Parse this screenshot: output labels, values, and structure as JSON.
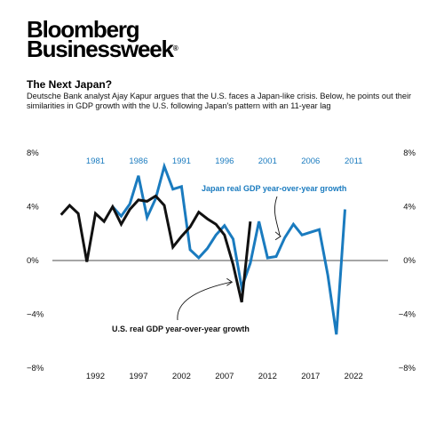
{
  "brand": {
    "line1": "Bloomberg",
    "line2": "Businessweek",
    "reg": "®"
  },
  "chart_data": {
    "type": "line",
    "title": "The Next Japan?",
    "subtitle": "Deutsche Bank analyst Ajay Kapur argues that the U.S. faces a Japan-like crisis. Below, he points out their similarities in GDP growth with the U.S. following Japan's pattern with an 11-year lag",
    "ylim": [
      -8,
      8
    ],
    "y_ticks": [
      8,
      4,
      0,
      -4,
      -8
    ],
    "y_tick_labels": [
      "8%",
      "4%",
      "0%",
      "−4%",
      "−8%"
    ],
    "x_bottom": {
      "label_values": [
        1992,
        1997,
        2002,
        2007,
        2012,
        2017,
        2022
      ],
      "range": [
        1987,
        2026
      ]
    },
    "x_top": {
      "label_values": [
        1981,
        1986,
        1991,
        1996,
        2001,
        2006,
        2011
      ],
      "range": [
        1976,
        2015
      ]
    },
    "grid": false,
    "series": [
      {
        "name": "Japan real GDP year-over-year growth",
        "axis": "top",
        "color": "#1a7bbf",
        "x": [
          1983,
          1984,
          1985,
          1986,
          1987,
          1988,
          1989,
          1990,
          1991,
          1992,
          1993,
          1994,
          1995,
          1996,
          1997,
          1998,
          1999,
          2000,
          2001,
          2002,
          2003,
          2004,
          2005,
          2006,
          2007,
          2008,
          2009,
          2010
        ],
        "y": [
          4.0,
          3.3,
          4.2,
          6.3,
          3.2,
          4.6,
          7.0,
          5.3,
          5.5,
          0.8,
          0.2,
          0.9,
          1.9,
          2.6,
          1.6,
          -2.0,
          -0.2,
          2.9,
          0.2,
          0.3,
          1.7,
          2.7,
          1.9,
          2.1,
          2.3,
          -1.1,
          -5.5,
          3.8
        ]
      },
      {
        "name": "U.S. real GDP year-over-year growth",
        "axis": "bottom",
        "color": "#111111",
        "x": [
          1988,
          1989,
          1990,
          1991,
          1992,
          1993,
          1994,
          1995,
          1996,
          1997,
          1998,
          1999,
          2000,
          2001,
          2002,
          2003,
          2004,
          2005,
          2006,
          2007,
          2008,
          2009,
          2010
        ],
        "y": [
          3.4,
          4.1,
          3.5,
          -0.1,
          3.5,
          2.9,
          4.0,
          2.7,
          3.8,
          4.5,
          4.4,
          4.8,
          4.1,
          1.0,
          1.8,
          2.5,
          3.6,
          3.1,
          2.7,
          1.9,
          -0.3,
          -3.1,
          2.9
        ]
      }
    ],
    "annotations": [
      {
        "text": "Japan real GDP year-over-year growth",
        "series": "Japan real GDP year-over-year growth"
      },
      {
        "text": "U.S. real GDP year-over-year growth",
        "series": "U.S. real GDP year-over-year growth"
      }
    ]
  }
}
